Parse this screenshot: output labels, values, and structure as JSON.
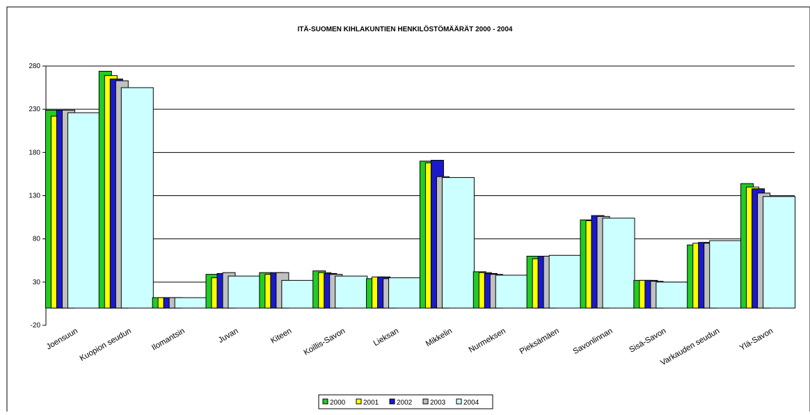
{
  "chart_data": {
    "type": "bar",
    "title": "ITÄ-SUOMEN KIHLAKUNTIEN HENKILÖSTÖMÄÄRÄT 2000 - 2004",
    "xlabel": "",
    "ylabel": "",
    "ylim": [
      -20,
      280
    ],
    "yticks": [
      -20,
      30,
      80,
      130,
      180,
      230,
      280
    ],
    "grid": true,
    "legend_position": "bottom",
    "categories": [
      "Joensuun",
      "Kuopion seudun",
      "Ilomantsin",
      "Juvan",
      "Kiteen",
      "Koillis-Savon",
      "Lieksan",
      "Mikkelin",
      "Nurmeksen",
      "Pieksämäen",
      "Savonlinnan",
      "Sisä-Savon",
      "Varkauden seudun",
      "Ylä-Savon"
    ],
    "series": [
      {
        "name": "2000",
        "color": "#22cc22",
        "values": [
          229,
          274,
          12,
          39,
          41,
          43,
          34,
          170,
          42,
          60,
          102,
          32,
          73,
          144
        ]
      },
      {
        "name": "2001",
        "color": "#ffff00",
        "values": [
          222,
          269,
          12,
          35,
          39,
          41,
          36,
          168,
          41,
          57,
          101,
          32,
          75,
          140
        ]
      },
      {
        "name": "2002",
        "color": "#1a1acc",
        "values": [
          229,
          265,
          12,
          40,
          41,
          40,
          36,
          171,
          40,
          60,
          107,
          32,
          76,
          138
        ]
      },
      {
        "name": "2003",
        "color": "#c0c0c0",
        "values": [
          229,
          263,
          12,
          41,
          41,
          39,
          34,
          152,
          39,
          60,
          106,
          31,
          75,
          133
        ]
      },
      {
        "name": "2004",
        "color": "#ccffff",
        "values": [
          226,
          255,
          12,
          37,
          32,
          37,
          35,
          151,
          38,
          61,
          104,
          30,
          78,
          129
        ]
      }
    ]
  }
}
